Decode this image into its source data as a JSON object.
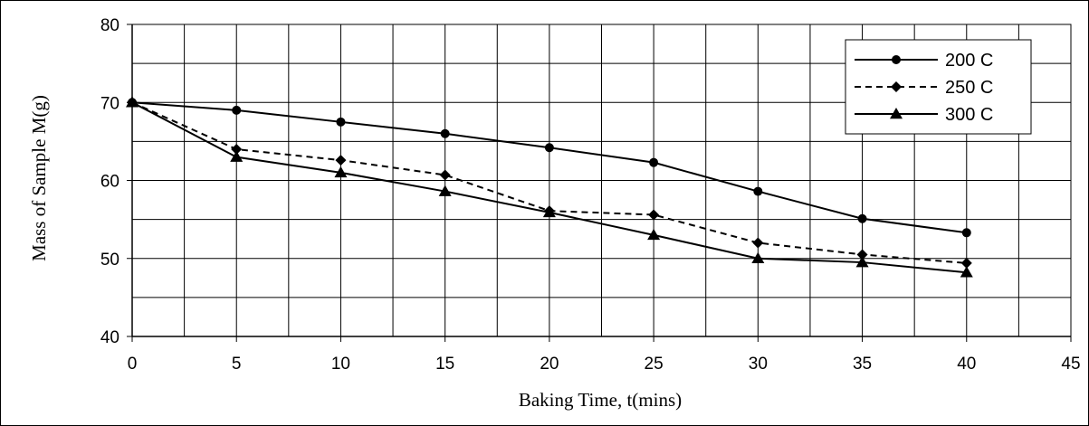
{
  "chart_data": {
    "type": "line",
    "xlabel": "Baking Time, t(mins)",
    "ylabel": "Mass of Sample M(g)",
    "xlim": [
      0,
      45
    ],
    "ylim": [
      40,
      80
    ],
    "x_ticks": [
      0,
      5,
      10,
      15,
      20,
      25,
      30,
      35,
      40,
      45
    ],
    "y_ticks": [
      40,
      50,
      60,
      70,
      80
    ],
    "x_grid_step": 2.5,
    "y_grid_step": 5,
    "grid": true,
    "legend_position": "top-right",
    "x": [
      0,
      5,
      10,
      15,
      20,
      25,
      30,
      35,
      40
    ],
    "series": [
      {
        "name": "200 C",
        "values": [
          70,
          69,
          67.5,
          66,
          64.2,
          62.3,
          58.6,
          55.1,
          53.3
        ],
        "marker": "circle",
        "dash": "solid",
        "color": "#000000"
      },
      {
        "name": "250 C",
        "values": [
          70,
          64,
          62.6,
          60.7,
          56.1,
          55.6,
          52,
          50.5,
          49.4
        ],
        "marker": "diamond",
        "dash": "dashed",
        "color": "#000000"
      },
      {
        "name": "300 C",
        "values": [
          70,
          63,
          61,
          58.6,
          55.9,
          53,
          50,
          49.5,
          48.2
        ],
        "marker": "triangle",
        "dash": "solid",
        "color": "#000000"
      }
    ]
  }
}
